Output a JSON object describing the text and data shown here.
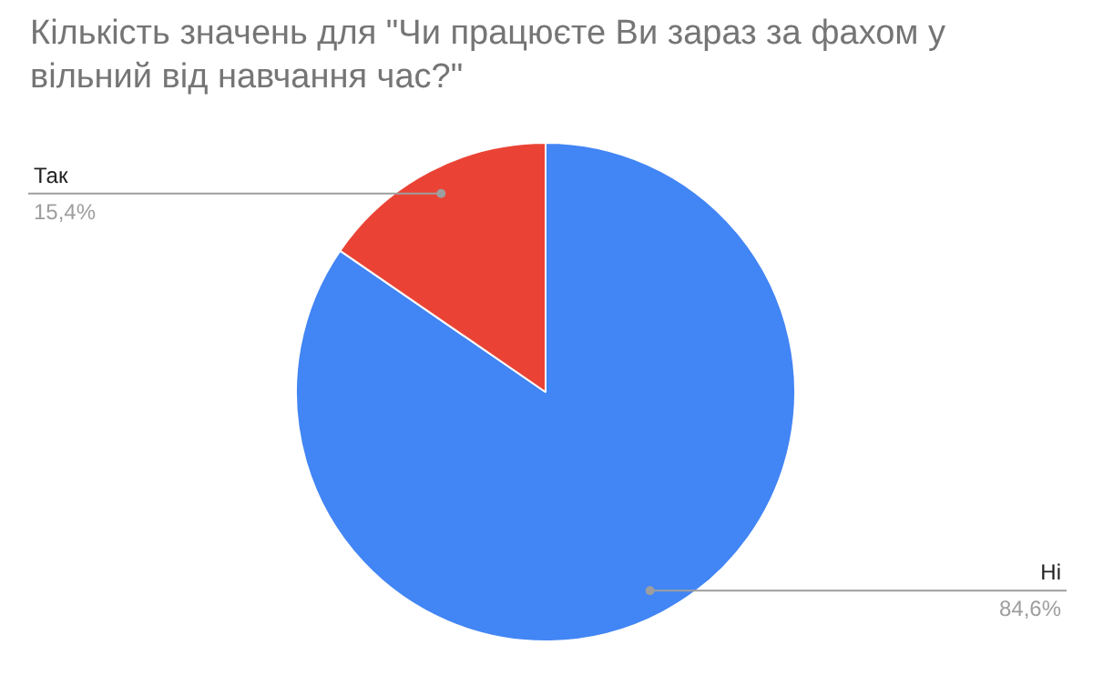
{
  "chart_data": {
    "type": "pie",
    "title": "Кількість значень для \"Чи працюєте Ви зараз за фахом у вільний від навчання час?\"",
    "categories": [
      "Ні",
      "Так"
    ],
    "values": [
      84.6,
      15.4
    ],
    "colors": [
      "#4285f4",
      "#ea4335"
    ],
    "value_labels": [
      "84,6%",
      "15,4%"
    ]
  }
}
